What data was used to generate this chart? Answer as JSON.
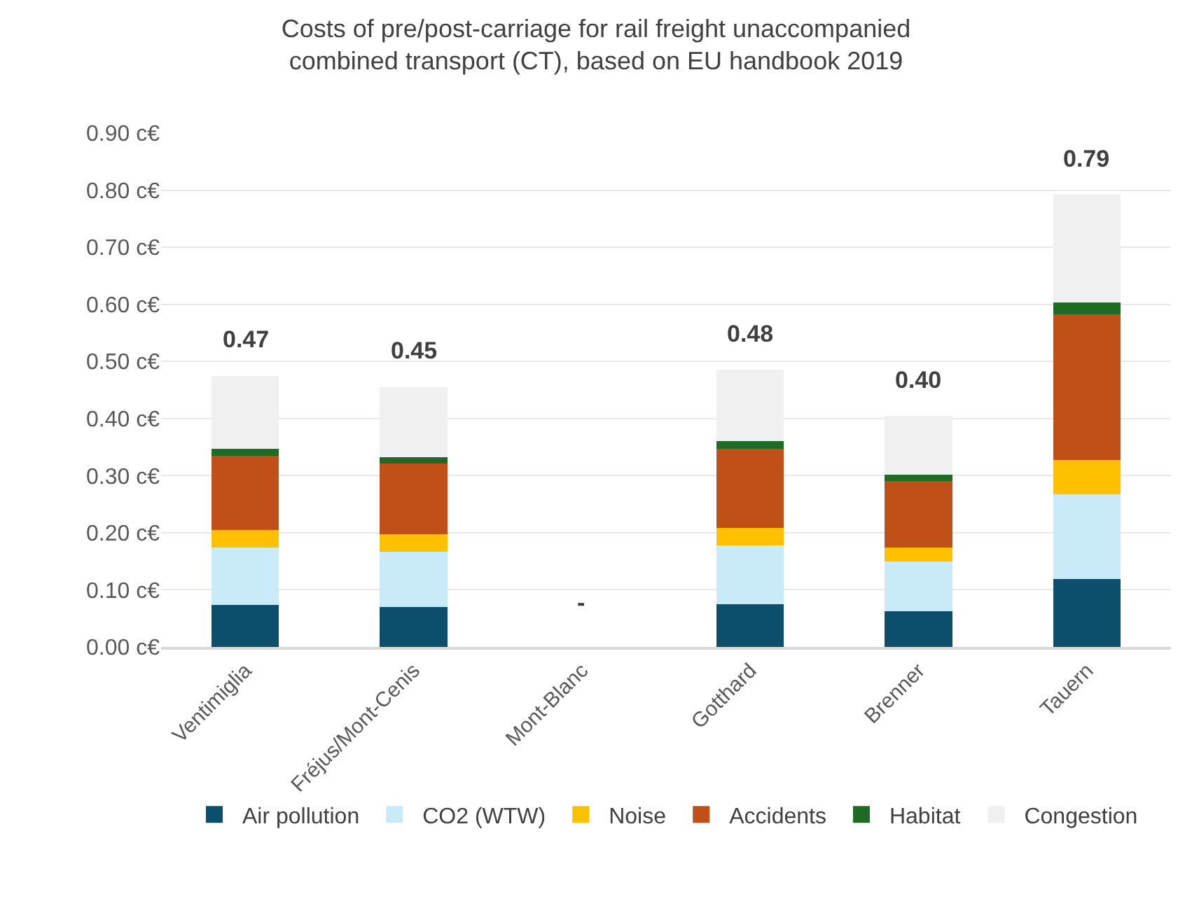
{
  "chart_data": {
    "type": "bar",
    "stacked": true,
    "title": "Costs of pre/post-carriage for rail freight unaccompanied combined transport (CT), based on EU handbook 2019",
    "categories": [
      "Ventimiglia",
      "Fréjus/Mont-Cenis",
      "Mont-Blanc",
      "Gotthard",
      "Brenner",
      "Tauern"
    ],
    "series": [
      {
        "name": "Air pollution",
        "color": "#0b4f6c",
        "values": [
          0.073,
          0.07,
          null,
          0.075,
          0.063,
          0.119
        ]
      },
      {
        "name": "CO2 (WTW)",
        "color": "#c9ebf9",
        "values": [
          0.101,
          0.097,
          null,
          0.103,
          0.086,
          0.148
        ]
      },
      {
        "name": "Noise",
        "color": "#ffc000",
        "values": [
          0.031,
          0.03,
          null,
          0.031,
          0.025,
          0.061
        ]
      },
      {
        "name": "Accidents",
        "color": "#c05017",
        "values": [
          0.13,
          0.124,
          null,
          0.138,
          0.116,
          0.254
        ]
      },
      {
        "name": "Habitat",
        "color": "#1e6b24",
        "values": [
          0.012,
          0.011,
          null,
          0.014,
          0.012,
          0.021
        ]
      },
      {
        "name": "Congestion",
        "color": "#f0f0f0",
        "values": [
          0.128,
          0.123,
          null,
          0.124,
          0.103,
          0.19
        ]
      }
    ],
    "totals": [
      "0.47",
      "0.45",
      "-",
      "0.48",
      "0.40",
      "0.79"
    ],
    "ylim": [
      0,
      0.9
    ],
    "yticks": [
      {
        "value": 0,
        "label": "0.00 c€"
      },
      {
        "value": 0.1,
        "label": "0.10 c€"
      },
      {
        "value": 0.2,
        "label": "0.20 c€"
      },
      {
        "value": 0.3,
        "label": "0.30 c€"
      },
      {
        "value": 0.4,
        "label": "0.40 c€"
      },
      {
        "value": 0.5,
        "label": "0.50 c€"
      },
      {
        "value": 0.6,
        "label": "0.60 c€"
      },
      {
        "value": 0.7,
        "label": "0.70 c€"
      },
      {
        "value": 0.8,
        "label": "0.80 c€"
      },
      {
        "value": 0.9,
        "label": "0.90 c€"
      }
    ],
    "grid": "y",
    "legend": "bottom"
  }
}
